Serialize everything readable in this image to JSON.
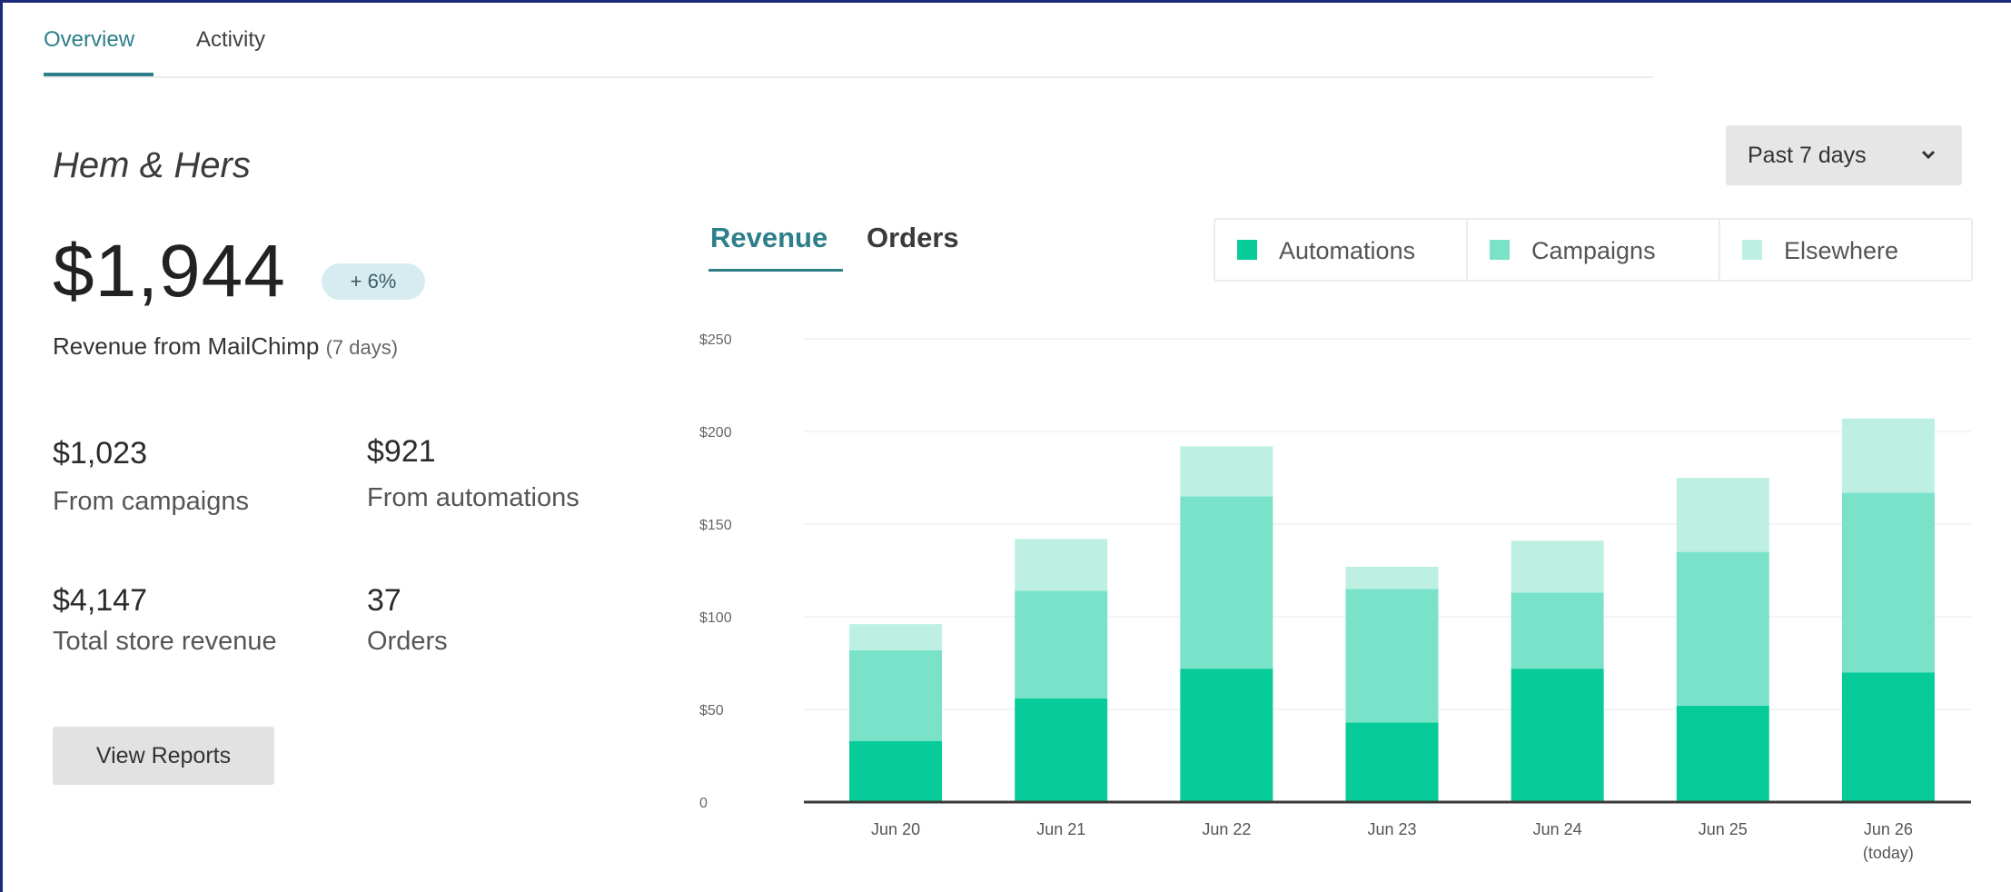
{
  "tabs": [
    {
      "label": "Overview",
      "active": true
    },
    {
      "label": "Activity",
      "active": false
    }
  ],
  "store": {
    "name": "Hem & Hers",
    "revenue": "$1,944",
    "change": "+ 6%",
    "revenue_caption": "Revenue from MailChimp",
    "revenue_days": "(7 days)"
  },
  "stats": [
    {
      "value": "$1,023",
      "label": "From campaigns"
    },
    {
      "value": "$921",
      "label": "From automations"
    },
    {
      "value": "$4,147",
      "label": "Total store revenue"
    },
    {
      "value": "37",
      "label": "Orders"
    }
  ],
  "actions": {
    "view_reports": "View Reports"
  },
  "range": {
    "selected": "Past 7 days"
  },
  "chart_tabs": [
    {
      "label": "Revenue",
      "active": true
    },
    {
      "label": "Orders",
      "active": false
    }
  ],
  "colors": {
    "automations": "#07cc9a",
    "campaigns": "#7ae2c9",
    "elsewhere": "#bdf0e3",
    "accent": "#2d7f8a"
  },
  "chart_data": {
    "type": "bar",
    "stacked": true,
    "categories": [
      "Jun 20",
      "Jun 21",
      "Jun 22",
      "Jun 23",
      "Jun 24",
      "Jun 25",
      "Jun 26"
    ],
    "category_sublabels": [
      "",
      "",
      "",
      "",
      "",
      "",
      "(today)"
    ],
    "series": [
      {
        "name": "Automations",
        "values": [
          33,
          56,
          72,
          43,
          72,
          52,
          70
        ]
      },
      {
        "name": "Campaigns",
        "values": [
          49,
          58,
          93,
          72,
          41,
          83,
          97
        ]
      },
      {
        "name": "Elsewhere",
        "values": [
          14,
          28,
          27,
          12,
          28,
          40,
          40
        ]
      }
    ],
    "yticks": [
      {
        "value": 0,
        "label": "0"
      },
      {
        "value": 50,
        "label": "$50"
      },
      {
        "value": 100,
        "label": "$100"
      },
      {
        "value": 150,
        "label": "$150"
      },
      {
        "value": 200,
        "label": "$200"
      },
      {
        "value": 250,
        "label": "$250"
      }
    ],
    "ylim": [
      0,
      250
    ],
    "grid": true,
    "legend_position": "top-right"
  }
}
